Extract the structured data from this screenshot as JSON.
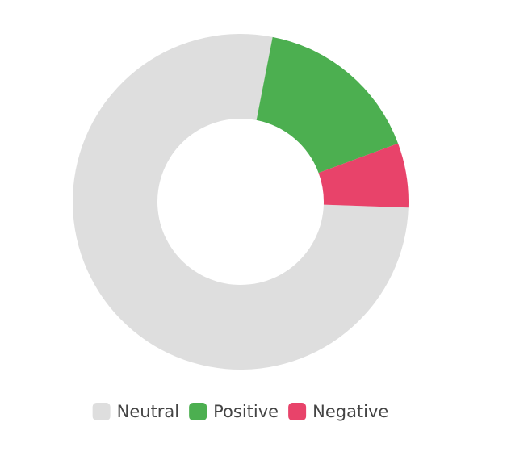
{
  "chart_data": {
    "type": "doughnut",
    "categories": [
      "Neutral",
      "Positive",
      "Negative"
    ],
    "values": [
      77.5,
      16.3,
      6.2
    ],
    "colors": [
      "#dedede",
      "#4caf50",
      "#e8436a"
    ],
    "legend": "bottom"
  }
}
